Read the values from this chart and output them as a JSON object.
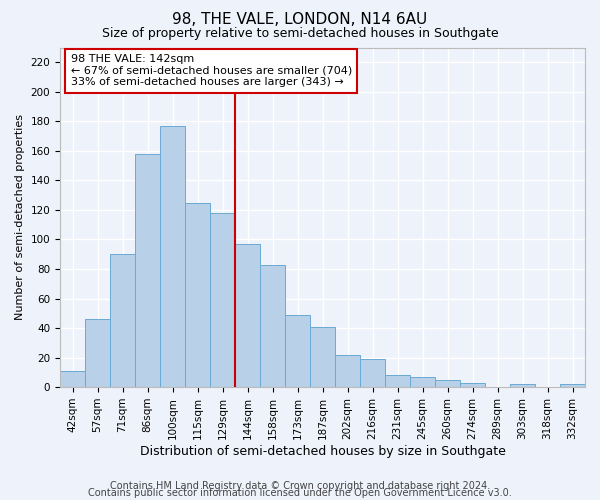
{
  "title": "98, THE VALE, LONDON, N14 6AU",
  "subtitle": "Size of property relative to semi-detached houses in Southgate",
  "xlabel": "Distribution of semi-detached houses by size in Southgate",
  "ylabel": "Number of semi-detached properties",
  "categories": [
    "42sqm",
    "57sqm",
    "71sqm",
    "86sqm",
    "100sqm",
    "115sqm",
    "129sqm",
    "144sqm",
    "158sqm",
    "173sqm",
    "187sqm",
    "202sqm",
    "216sqm",
    "231sqm",
    "245sqm",
    "260sqm",
    "274sqm",
    "289sqm",
    "303sqm",
    "318sqm",
    "332sqm"
  ],
  "values": [
    11,
    46,
    90,
    158,
    177,
    125,
    118,
    97,
    83,
    49,
    41,
    22,
    19,
    8,
    7,
    5,
    3,
    0,
    2,
    0,
    2
  ],
  "bar_color": "#b8d0e8",
  "bar_edge_color": "#6aaad4",
  "vline_index": 7,
  "vline_color": "#cc0000",
  "annotation_text_line1": "98 THE VALE: 142sqm",
  "annotation_text_line2": "← 67% of semi-detached houses are smaller (704)",
  "annotation_text_line3": "33% of semi-detached houses are larger (343) →",
  "annotation_box_color": "#ffffff",
  "annotation_box_edge": "#cc0000",
  "ylim": [
    0,
    230
  ],
  "yticks": [
    0,
    20,
    40,
    60,
    80,
    100,
    120,
    140,
    160,
    180,
    200,
    220
  ],
  "footer1": "Contains HM Land Registry data © Crown copyright and database right 2024.",
  "footer2": "Contains public sector information licensed under the Open Government Licence v3.0.",
  "background_color": "#eef2fa",
  "grid_color": "#ffffff",
  "title_fontsize": 11,
  "subtitle_fontsize": 9,
  "xlabel_fontsize": 9,
  "ylabel_fontsize": 8,
  "tick_fontsize": 7.5,
  "annotation_fontsize": 8,
  "footer_fontsize": 7
}
